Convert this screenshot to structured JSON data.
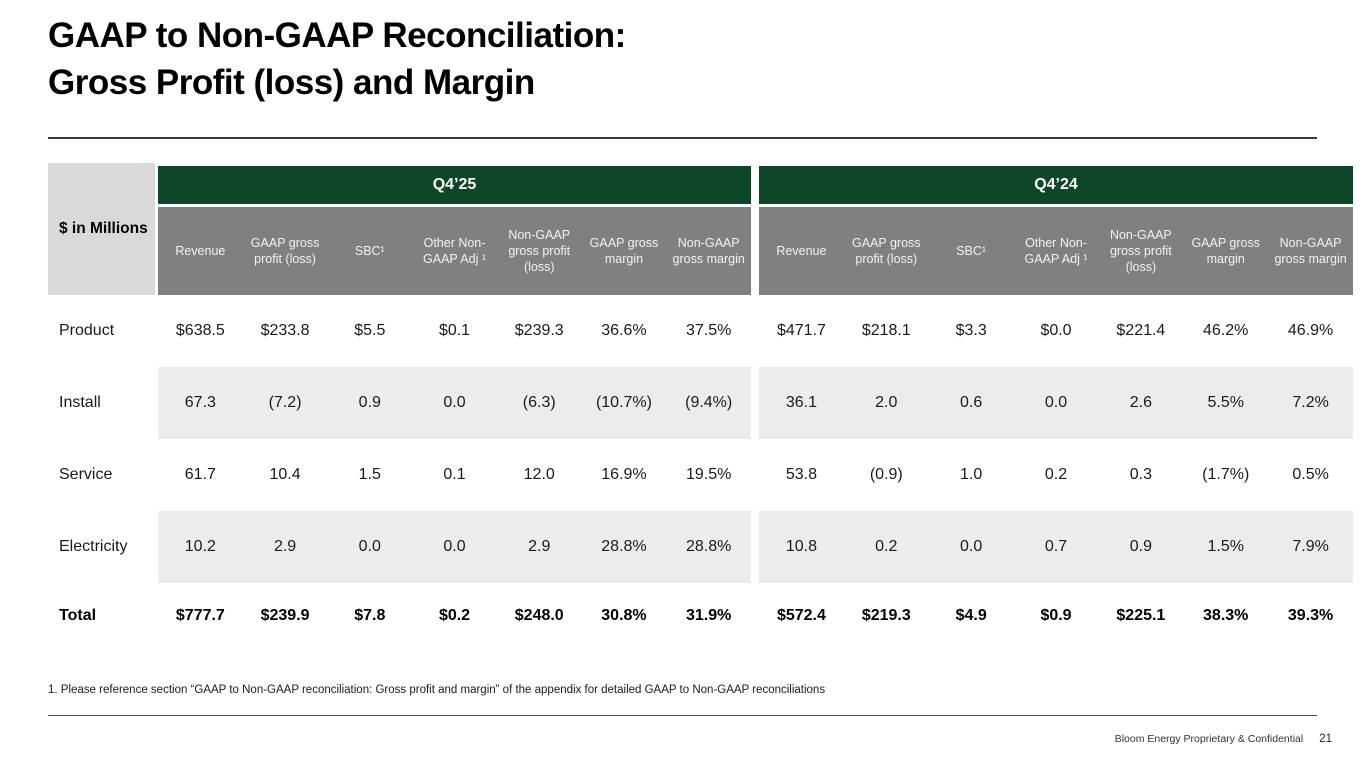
{
  "slide": {
    "title_line1": "GAAP to Non-GAAP Reconciliation:",
    "title_line2": "Gross Profit (loss) and Margin",
    "footnote": "1. Please reference section “GAAP to Non-GAAP reconciliation: Gross profit and margin” of the appendix for detailed GAAP to Non-GAAP reconciliations",
    "footer_text": "Bloom Energy Proprietary & Confidential",
    "page_number": "21"
  },
  "colors": {
    "header_green": "#0d4628",
    "header_gray": "#808080",
    "unit_cell_gray": "#d9d9d9",
    "row_band_gray": "#ececec"
  },
  "table": {
    "unit_label": "$ in Millions",
    "groups": [
      {
        "label": "Q4’25"
      },
      {
        "label": "Q4’24"
      }
    ],
    "columns": [
      "Revenue",
      "GAAP gross profit (loss)",
      "SBC¹",
      "Other Non-GAAP Adj ¹",
      "Non-GAAP gross profit (loss)",
      "GAAP gross margin",
      "Non-GAAP gross margin"
    ],
    "rows": [
      {
        "label": "Product",
        "q425": [
          "$638.5",
          "$233.8",
          "$5.5",
          "$0.1",
          "$239.3",
          "36.6%",
          "37.5%"
        ],
        "q424": [
          "$471.7",
          "$218.1",
          "$3.3",
          "$0.0",
          "$221.4",
          "46.2%",
          "46.9%"
        ]
      },
      {
        "label": "Install",
        "q425": [
          "67.3",
          "(7.2)",
          "0.9",
          "0.0",
          "(6.3)",
          "(10.7%)",
          "(9.4%)"
        ],
        "q424": [
          "36.1",
          "2.0",
          "0.6",
          "0.0",
          "2.6",
          "5.5%",
          "7.2%"
        ]
      },
      {
        "label": "Service",
        "q425": [
          "61.7",
          "10.4",
          "1.5",
          "0.1",
          "12.0",
          "16.9%",
          "19.5%"
        ],
        "q424": [
          "53.8",
          "(0.9)",
          "1.0",
          "0.2",
          "0.3",
          "(1.7%)",
          "0.5%"
        ]
      },
      {
        "label": "Electricity",
        "q425": [
          "10.2",
          "2.9",
          "0.0",
          "0.0",
          "2.9",
          "28.8%",
          "28.8%"
        ],
        "q424": [
          "10.8",
          "0.2",
          "0.0",
          "0.7",
          "0.9",
          "1.5%",
          "7.9%"
        ]
      },
      {
        "label": "Total",
        "q425": [
          "$777.7",
          "$239.9",
          "$7.8",
          "$0.2",
          "$248.0",
          "30.8%",
          "31.9%"
        ],
        "q424": [
          "$572.4",
          "$219.3",
          "$4.9",
          "$0.9",
          "$225.1",
          "38.3%",
          "39.3%"
        ]
      }
    ]
  }
}
